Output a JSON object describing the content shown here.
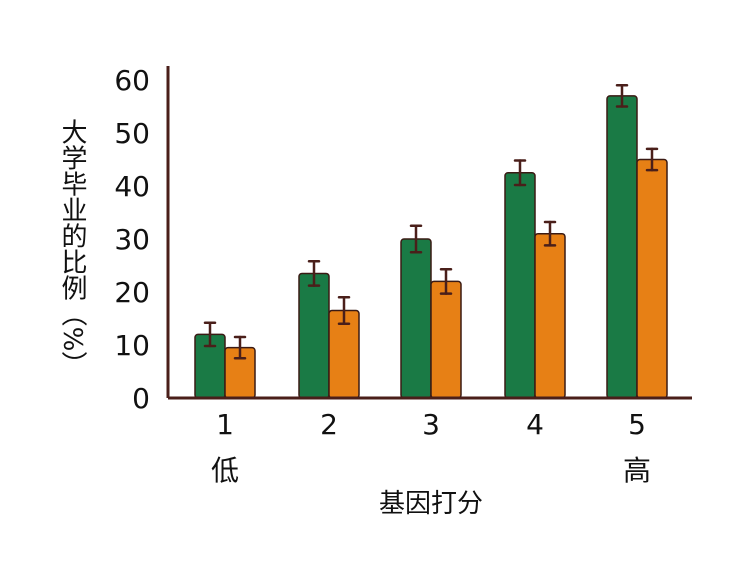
{
  "chart_data": {
    "type": "bar",
    "categories": [
      "1",
      "2",
      "3",
      "4",
      "5"
    ],
    "series": [
      {
        "values": [
          12,
          23.5,
          30,
          42.5,
          57
        ],
        "errors": [
          2.2,
          2.3,
          2.5,
          2.3,
          2.0
        ],
        "color": "#1a7a45"
      },
      {
        "values": [
          9.5,
          16.5,
          22,
          31,
          45
        ],
        "errors": [
          2.0,
          2.5,
          2.3,
          2.2,
          2.0
        ],
        "color": "#e78015"
      }
    ],
    "ylabel": "大学毕业的比例（%）",
    "xlabel": "基因打分",
    "x_low_label": "低",
    "x_high_label": "高",
    "ylim": [
      0,
      60
    ],
    "yticks": [
      0,
      10,
      20,
      30,
      40,
      50,
      60
    ],
    "grid": false,
    "colors": {
      "axis": "#4a1f1a",
      "bar_outline": "#3a1a14",
      "error_bar": "#4a1f1a"
    }
  }
}
